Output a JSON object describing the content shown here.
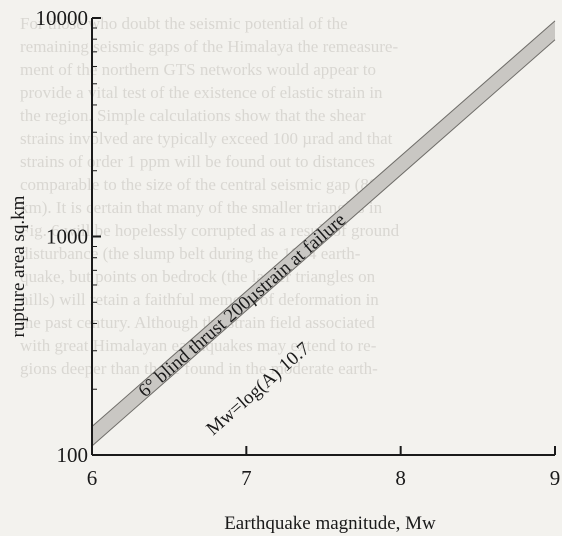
{
  "background_text": [
    "For those who doubt the seismic potential of the",
    "remaining seismic gaps of the Himalaya the remeasure-",
    "ment of the northern GTS networks would appear to",
    "provide a vital test of the existence of elastic strain in",
    "the region. Simple calculations show that the shear",
    "strains involved are typically exceed 100 µrad and that",
    "strains of order 1 ppm will be found out to distances",
    "comparable to the size of the central seismic gap (800",
    "km). It is certain that many of the smaller triangles in",
    "Fig. 6 will be hopelessly corrupted as a result of ground",
    "disturbance (the slump belt during the 1934 earth-",
    "quake, but points on bedrock (the larger triangles on",
    "hills) will retain a faithful memory of deformation in",
    "the past century. Although the strain field associated",
    "with great Himalayan earthquakes may extend to re-",
    "gions deeper than those found in the moderate earth-"
  ],
  "chart_data": {
    "type": "line",
    "x_axis": {
      "label": "Earthquake magnitude, Mw",
      "range": [
        6,
        9
      ],
      "ticks": [
        6,
        7,
        8,
        9
      ],
      "tick_labels": [
        "6",
        "7",
        "8",
        "9"
      ]
    },
    "y_axis": {
      "label": "rupture area sq.km",
      "scale": "log",
      "range": [
        100,
        10000
      ],
      "ticks": [
        100,
        1000,
        10000
      ],
      "tick_labels": [
        "100",
        "1000",
        "10000"
      ]
    },
    "band": {
      "lower": [
        {
          "x": 6,
          "y": 110
        },
        {
          "x": 9,
          "y": 7950
        }
      ],
      "upper": [
        {
          "x": 6,
          "y": 135
        },
        {
          "x": 9,
          "y": 9700
        }
      ]
    },
    "annotations": [
      {
        "text": "6° blind thrust 200µstrain at failure"
      },
      {
        "text": "Mw=log(A) 10.7"
      }
    ]
  }
}
